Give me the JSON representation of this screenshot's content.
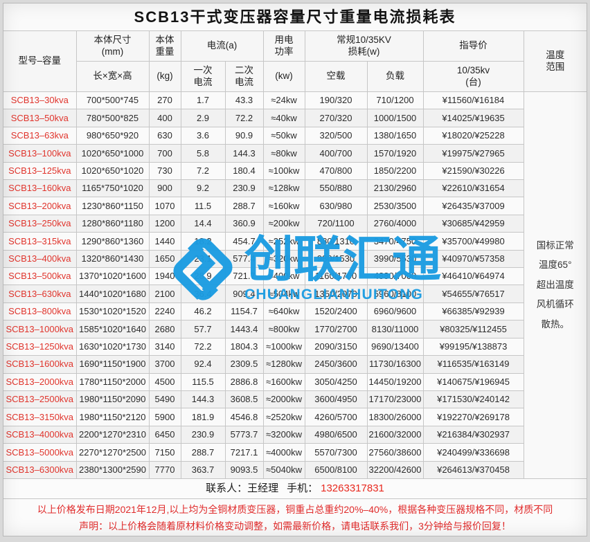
{
  "title": "SCB13干式变压器容量尺寸重量电流损耗表",
  "header": {
    "model": "型号–容量",
    "size_top": "本体尺寸\n(mm)",
    "size_sub": "长×宽×高",
    "weight_top": "本体\n重量",
    "weight_sub": "(kg)",
    "current_group": "电流(a)",
    "current_primary": "一次\n电流",
    "current_secondary": "二次\n电流",
    "power_top": "用电\n功率",
    "power_sub": "(kw)",
    "loss_group": "常规10/35KV\n损耗(w)",
    "loss_noload": "空载",
    "loss_load": "负载",
    "price_top": "指导价",
    "price_sub": "10/35kv\n(台)",
    "temp": "温度\n范围"
  },
  "temperature_note_lines": [
    "国标正常",
    "温度65°",
    "超出温度",
    "风机循环",
    "散热。"
  ],
  "rows": [
    {
      "model": "SCB13–30kva",
      "size": "700*500*745",
      "weight": "270",
      "i1": "1.7",
      "i2": "43.3",
      "power": "≈24kw",
      "noload": "190/320",
      "load": "710/1200",
      "price": "¥11560/¥16184"
    },
    {
      "model": "SCB13–50kva",
      "size": "780*500*825",
      "weight": "400",
      "i1": "2.9",
      "i2": "72.2",
      "power": "≈40kw",
      "noload": "270/320",
      "load": "1000/1500",
      "price": "¥14025/¥19635"
    },
    {
      "model": "SCB13–63kva",
      "size": "980*650*920",
      "weight": "630",
      "i1": "3.6",
      "i2": "90.9",
      "power": "≈50kw",
      "noload": "320/500",
      "load": "1380/1650",
      "price": "¥18020/¥25228"
    },
    {
      "model": "SCB13–100kva",
      "size": "1020*650*1000",
      "weight": "700",
      "i1": "5.8",
      "i2": "144.3",
      "power": "≈80kw",
      "noload": "400/700",
      "load": "1570/1920",
      "price": "¥19975/¥27965"
    },
    {
      "model": "SCB13–125kva",
      "size": "1020*650*1020",
      "weight": "730",
      "i1": "7.2",
      "i2": "180.4",
      "power": "≈100kw",
      "noload": "470/800",
      "load": "1850/2200",
      "price": "¥21590/¥30226"
    },
    {
      "model": "SCB13–160kva",
      "size": "1165*750*1020",
      "weight": "900",
      "i1": "9.2",
      "i2": "230.9",
      "power": "≈128kw",
      "noload": "550/880",
      "load": "2130/2960",
      "price": "¥22610/¥31654"
    },
    {
      "model": "SCB13–200kva",
      "size": "1230*860*1150",
      "weight": "1070",
      "i1": "11.5",
      "i2": "288.7",
      "power": "≈160kw",
      "noload": "630/980",
      "load": "2530/3500",
      "price": "¥26435/¥37009"
    },
    {
      "model": "SCB13–250kva",
      "size": "1280*860*1180",
      "weight": "1200",
      "i1": "14.4",
      "i2": "360.9",
      "power": "≈200kw",
      "noload": "720/1100",
      "load": "2760/4000",
      "price": "¥30685/¥42959"
    },
    {
      "model": "SCB13–315kva",
      "size": "1290*860*1360",
      "weight": "1440",
      "i1": "18.2",
      "i2": "454.7",
      "power": "≈252kw",
      "noload": "880/1310",
      "load": "3470/4750",
      "price": "¥35700/¥49980"
    },
    {
      "model": "SCB13–400kva",
      "size": "1320*860*1430",
      "weight": "1650",
      "i1": "23.1",
      "i2": "577.4",
      "power": "≈320kw",
      "noload": "980/1530",
      "load": "3990/5530",
      "price": "¥40970/¥57358"
    },
    {
      "model": "SCB13–500kva",
      "size": "1370*1020*1600",
      "weight": "1940",
      "i1": "28.9",
      "i2": "721.7",
      "power": "≈400kw",
      "noload": "1160/1700",
      "load": "4880/7000",
      "price": "¥46410/¥64974"
    },
    {
      "model": "SCB13–630kva",
      "size": "1440*1020*1680",
      "weight": "2100",
      "i1": "36.4",
      "i2": "909.4",
      "power": "≈504kw",
      "noload": "1350/2070",
      "load": "5960/8100",
      "price": "¥54655/¥76517"
    },
    {
      "model": "SCB13–800kva",
      "size": "1530*1020*1520",
      "weight": "2240",
      "i1": "46.2",
      "i2": "1154.7",
      "power": "≈640kw",
      "noload": "1520/2400",
      "load": "6960/9600",
      "price": "¥66385/¥92939"
    },
    {
      "model": "SCB13–1000kva",
      "size": "1585*1020*1640",
      "weight": "2680",
      "i1": "57.7",
      "i2": "1443.4",
      "power": "≈800kw",
      "noload": "1770/2700",
      "load": "8130/11000",
      "price": "¥80325/¥112455"
    },
    {
      "model": "SCB13–1250kva",
      "size": "1630*1020*1730",
      "weight": "3140",
      "i1": "72.2",
      "i2": "1804.3",
      "power": "≈1000kw",
      "noload": "2090/3150",
      "load": "9690/13400",
      "price": "¥99195/¥138873"
    },
    {
      "model": "SCB13–1600kva",
      "size": "1690*1150*1900",
      "weight": "3700",
      "i1": "92.4",
      "i2": "2309.5",
      "power": "≈1280kw",
      "noload": "2450/3600",
      "load": "11730/16300",
      "price": "¥116535/¥163149"
    },
    {
      "model": "SCB13–2000kva",
      "size": "1780*1150*2000",
      "weight": "4500",
      "i1": "115.5",
      "i2": "2886.8",
      "power": "≈1600kw",
      "noload": "3050/4250",
      "load": "14450/19200",
      "price": "¥140675/¥196945"
    },
    {
      "model": "SCB13–2500kva",
      "size": "1980*1150*2090",
      "weight": "5490",
      "i1": "144.3",
      "i2": "3608.5",
      "power": "≈2000kw",
      "noload": "3600/4950",
      "load": "17170/23000",
      "price": "¥171530/¥240142"
    },
    {
      "model": "SCB13–3150kva",
      "size": "1980*1150*2120",
      "weight": "5900",
      "i1": "181.9",
      "i2": "4546.8",
      "power": "≈2520kw",
      "noload": "4260/5700",
      "load": "18300/26000",
      "price": "¥192270/¥269178"
    },
    {
      "model": "SCB13–4000kva",
      "size": "2200*1270*2310",
      "weight": "6450",
      "i1": "230.9",
      "i2": "5773.7",
      "power": "≈3200kw",
      "noload": "4980/6500",
      "load": "21600/32000",
      "price": "¥216384/¥302937"
    },
    {
      "model": "SCB13–5000kva",
      "size": "2270*1270*2500",
      "weight": "7150",
      "i1": "288.7",
      "i2": "7217.1",
      "power": "≈4000kw",
      "noload": "5570/7300",
      "load": "27560/38600",
      "price": "¥240499/¥336698"
    },
    {
      "model": "SCB13–6300kva",
      "size": "2380*1300*2590",
      "weight": "7770",
      "i1": "363.7",
      "i2": "9093.5",
      "power": "≈5040kw",
      "noload": "6500/8100",
      "load": "32200/42600",
      "price": "¥264613/¥370458"
    }
  ],
  "watermark": {
    "cn": "创联汇通",
    "en": "CHUANGLIANHUITONG",
    "color": "#1b9ce2"
  },
  "contact": {
    "person_label": "联系人：王经理",
    "phone_label": "手机：",
    "phone": "13263317831"
  },
  "notes": [
    "以上价格发布日期2021年12月,以上均为全铜材质变压器，铜重占总重约20%–40%，根据各种变压器规格不同，材质不同",
    "声明：以上价格会随着原材料价格变动调整，如需最新价格，请电话联系我们，3分钟给与报价回复！"
  ],
  "colors": {
    "model_red": "#e0342c",
    "note_red": "#e02b2b",
    "watermark_blue": "#1b9ce2",
    "border_gray": "#c6c6c6"
  }
}
